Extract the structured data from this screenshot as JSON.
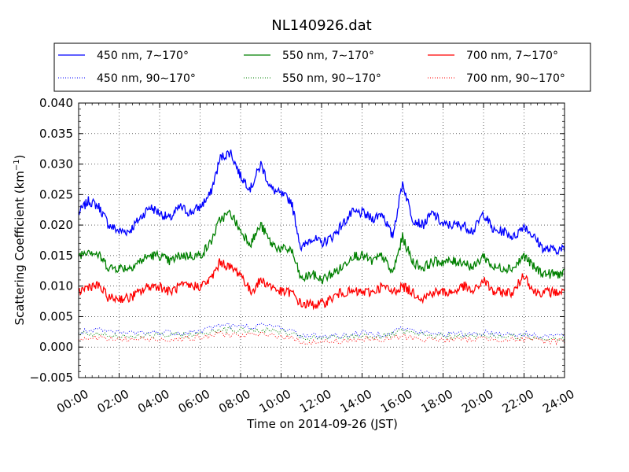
{
  "chart_data": {
    "type": "line",
    "title": "NL140926.dat",
    "xlabel": "Time on 2014-09-26 (JST)",
    "ylabel": "Scattering Coefficient (km",
    "ylabel_sup": "−1",
    "ylabel_end": ")",
    "x_ticks": [
      "00:00",
      "02:00",
      "04:00",
      "06:00",
      "08:00",
      "10:00",
      "12:00",
      "14:00",
      "16:00",
      "18:00",
      "20:00",
      "22:00",
      "24:00"
    ],
    "x_unit": "hours",
    "xlim": [
      0,
      24
    ],
    "y_ticks": [
      "0.040",
      "0.035",
      "0.030",
      "0.025",
      "0.020",
      "0.015",
      "0.010",
      "0.005",
      "0.000",
      "−0.005"
    ],
    "ylim": [
      -0.005,
      0.04
    ],
    "grid": true,
    "legend": {
      "placement": "top",
      "columns": 3
    },
    "series": [
      {
        "name": "450 nm, 7∼170°",
        "color": "#0000ff",
        "style": "solid",
        "x": [
          0,
          0.5,
          1,
          1.5,
          2,
          2.5,
          3,
          3.5,
          4,
          4.5,
          5,
          5.5,
          6,
          6.5,
          7,
          7.5,
          8,
          8.5,
          9,
          9.5,
          10,
          10.5,
          11,
          11.5,
          12,
          12.5,
          13,
          13.5,
          14,
          14.5,
          15,
          15.5,
          16,
          16.5,
          17,
          17.5,
          18,
          18.5,
          19,
          19.5,
          20,
          20.5,
          21,
          21.5,
          22,
          22.5,
          23,
          23.5,
          24
        ],
        "values": [
          0.022,
          0.024,
          0.023,
          0.02,
          0.019,
          0.019,
          0.021,
          0.023,
          0.022,
          0.021,
          0.023,
          0.022,
          0.023,
          0.025,
          0.031,
          0.032,
          0.028,
          0.026,
          0.03,
          0.026,
          0.025,
          0.024,
          0.016,
          0.018,
          0.017,
          0.018,
          0.02,
          0.022,
          0.022,
          0.021,
          0.022,
          0.018,
          0.027,
          0.021,
          0.02,
          0.022,
          0.02,
          0.02,
          0.02,
          0.019,
          0.022,
          0.019,
          0.019,
          0.018,
          0.02,
          0.018,
          0.016,
          0.016,
          0.016
        ]
      },
      {
        "name": "550 nm, 7∼170°",
        "color": "#008000",
        "style": "solid",
        "x": [
          0,
          0.5,
          1,
          1.5,
          2,
          2.5,
          3,
          3.5,
          4,
          4.5,
          5,
          5.5,
          6,
          6.5,
          7,
          7.5,
          8,
          8.5,
          9,
          9.5,
          10,
          10.5,
          11,
          11.5,
          12,
          12.5,
          13,
          13.5,
          14,
          14.5,
          15,
          15.5,
          16,
          16.5,
          17,
          17.5,
          18,
          18.5,
          19,
          19.5,
          20,
          20.5,
          21,
          21.5,
          22,
          22.5,
          23,
          23.5,
          24
        ],
        "values": [
          0.015,
          0.016,
          0.015,
          0.013,
          0.013,
          0.013,
          0.014,
          0.015,
          0.015,
          0.014,
          0.015,
          0.015,
          0.015,
          0.017,
          0.021,
          0.022,
          0.019,
          0.017,
          0.02,
          0.017,
          0.016,
          0.016,
          0.011,
          0.012,
          0.011,
          0.012,
          0.013,
          0.015,
          0.015,
          0.014,
          0.015,
          0.012,
          0.018,
          0.014,
          0.013,
          0.014,
          0.014,
          0.014,
          0.014,
          0.013,
          0.015,
          0.013,
          0.013,
          0.013,
          0.015,
          0.013,
          0.012,
          0.012,
          0.012
        ]
      },
      {
        "name": "700 nm, 7∼170°",
        "color": "#ff0000",
        "style": "solid",
        "x": [
          0,
          0.5,
          1,
          1.5,
          2,
          2.5,
          3,
          3.5,
          4,
          4.5,
          5,
          5.5,
          6,
          6.5,
          7,
          7.5,
          8,
          8.5,
          9,
          9.5,
          10,
          10.5,
          11,
          11.5,
          12,
          12.5,
          13,
          13.5,
          14,
          14.5,
          15,
          15.5,
          16,
          16.5,
          17,
          17.5,
          18,
          18.5,
          19,
          19.5,
          20,
          20.5,
          21,
          21.5,
          22,
          22.5,
          23,
          23.5,
          24
        ],
        "values": [
          0.009,
          0.01,
          0.01,
          0.008,
          0.008,
          0.008,
          0.009,
          0.01,
          0.01,
          0.009,
          0.01,
          0.01,
          0.01,
          0.011,
          0.014,
          0.013,
          0.012,
          0.009,
          0.011,
          0.01,
          0.009,
          0.009,
          0.007,
          0.007,
          0.007,
          0.008,
          0.009,
          0.009,
          0.009,
          0.009,
          0.01,
          0.009,
          0.01,
          0.009,
          0.008,
          0.009,
          0.009,
          0.009,
          0.01,
          0.009,
          0.011,
          0.009,
          0.009,
          0.009,
          0.012,
          0.009,
          0.009,
          0.009,
          0.009
        ]
      },
      {
        "name": "450 nm, 90∼170°",
        "color": "#0000ff",
        "style": "dotted",
        "x": [
          0,
          1,
          2,
          3,
          4,
          5,
          6,
          7,
          8,
          9,
          10,
          11,
          12,
          13,
          14,
          15,
          16,
          17,
          18,
          19,
          20,
          21,
          22,
          23,
          24
        ],
        "values": [
          0.0025,
          0.0027,
          0.0023,
          0.0024,
          0.0024,
          0.0024,
          0.0026,
          0.0037,
          0.0033,
          0.0035,
          0.0033,
          0.0019,
          0.0018,
          0.0019,
          0.0023,
          0.0021,
          0.0031,
          0.0023,
          0.0022,
          0.0021,
          0.0024,
          0.0022,
          0.0021,
          0.0019,
          0.0019
        ]
      },
      {
        "name": "550 nm, 90∼170°",
        "color": "#008000",
        "style": "dotted",
        "x": [
          0,
          1,
          2,
          3,
          4,
          5,
          6,
          7,
          8,
          9,
          10,
          11,
          12,
          13,
          14,
          15,
          16,
          17,
          18,
          19,
          20,
          21,
          22,
          23,
          24
        ],
        "values": [
          0.002,
          0.0022,
          0.0018,
          0.0019,
          0.0019,
          0.002,
          0.0021,
          0.003,
          0.0027,
          0.0028,
          0.0026,
          0.0015,
          0.0014,
          0.0016,
          0.0019,
          0.0017,
          0.0025,
          0.0019,
          0.0018,
          0.0017,
          0.0019,
          0.0018,
          0.0017,
          0.0015,
          0.0015
        ]
      },
      {
        "name": "700 nm, 90∼170°",
        "color": "#ff0000",
        "style": "dotted",
        "x": [
          0,
          1,
          2,
          3,
          4,
          5,
          6,
          7,
          8,
          9,
          10,
          11,
          12,
          13,
          14,
          15,
          16,
          17,
          18,
          19,
          20,
          21,
          22,
          23,
          24
        ],
        "values": [
          0.0014,
          0.0015,
          0.0012,
          0.0013,
          0.0013,
          0.0014,
          0.0015,
          0.0022,
          0.0019,
          0.002,
          0.0019,
          0.0009,
          0.0008,
          0.001,
          0.0013,
          0.0011,
          0.0018,
          0.0013,
          0.0012,
          0.0012,
          0.0014,
          0.0013,
          0.0012,
          0.001,
          0.001
        ]
      }
    ]
  }
}
